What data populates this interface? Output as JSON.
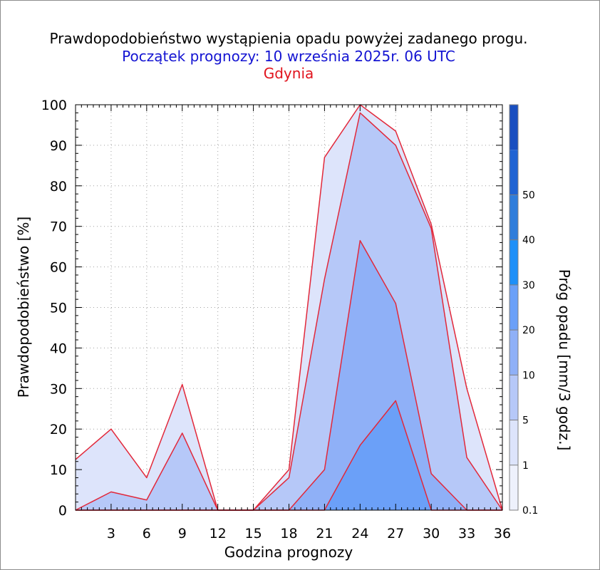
{
  "chart_data": {
    "type": "area",
    "title": "Prawdopodobieństwo wystąpienia opadu powyżej zadanego progu.",
    "subtitle": "Początek prognozy: 10 września 2025r. 06 UTC",
    "location": "Gdynia",
    "xlabel": "Godzina prognozy",
    "ylabel": "Prawdopodobieństwo [%]",
    "xlim": [
      0,
      36
    ],
    "ylim": [
      0,
      100
    ],
    "x_ticks": [
      "3",
      "6",
      "9",
      "12",
      "15",
      "18",
      "21",
      "24",
      "27",
      "30",
      "33",
      "36"
    ],
    "y_ticks": [
      "0",
      "10",
      "20",
      "30",
      "40",
      "50",
      "60",
      "70",
      "80",
      "90",
      "100"
    ],
    "grid": true,
    "x": [
      0,
      3,
      6,
      9,
      12,
      15,
      18,
      21,
      24,
      27,
      30,
      33,
      36
    ],
    "series": [
      {
        "threshold": "0.1",
        "color": "#dde4fb",
        "values": [
          12.5,
          20,
          8,
          31,
          0,
          0,
          10,
          87,
          100,
          93.5,
          70.5,
          30,
          0
        ]
      },
      {
        "threshold": "1",
        "color": "#b6c8f8",
        "values": [
          0,
          4.5,
          2.5,
          19,
          0,
          0,
          8,
          57,
          98,
          90,
          69.5,
          13,
          0
        ]
      },
      {
        "threshold": "5",
        "color": "#8fb0f7",
        "values": [
          0,
          0,
          0,
          0,
          0,
          0,
          0,
          10,
          66.5,
          51,
          9,
          0,
          0
        ]
      },
      {
        "threshold": "10",
        "color": "#6ba0f8",
        "values": [
          0,
          0,
          0,
          0,
          0,
          0,
          0,
          0,
          16,
          27,
          0,
          0,
          0
        ]
      }
    ],
    "colorbar": {
      "label": "Próg opadu [mm/3 godz.]",
      "levels": [
        "0.1",
        "1",
        "5",
        "10",
        "20",
        "30",
        "40",
        "50"
      ],
      "colors": [
        "#eef1fc",
        "#dde4fb",
        "#b6c8f8",
        "#8fb0f7",
        "#6ba0f8",
        "#1e90f8",
        "#2f7ddb",
        "#1f63d3",
        "#1a4fc0"
      ]
    }
  }
}
